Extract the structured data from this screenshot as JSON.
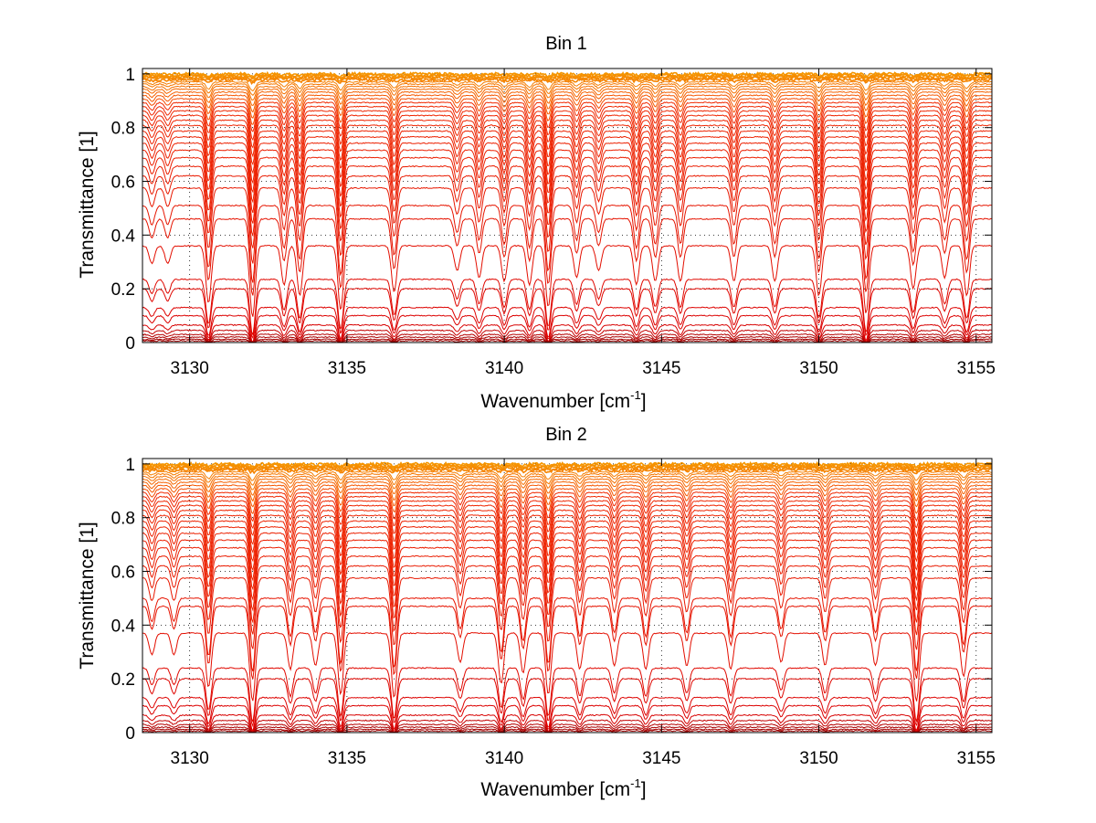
{
  "chart_data": [
    {
      "type": "line",
      "title": "Bin 1",
      "xlabel": "Wavenumber [cm",
      "xlabel_sup": "-1",
      "xlabel_end": "]",
      "ylabel": "Transmittance [1]",
      "xlim": [
        3128.5,
        3155.5
      ],
      "ylim": [
        0,
        1.02
      ],
      "xticks": [
        3130,
        3135,
        3140,
        3145,
        3150,
        3155
      ],
      "yticks": [
        0,
        0.2,
        0.4,
        0.6,
        0.8,
        1
      ],
      "ytick_labels": [
        "0",
        "0.2",
        "0.4",
        "0.6",
        "0.8",
        "1"
      ],
      "grid": true,
      "legend": "none",
      "colormap": "autumn (dark red at low transmittance to orange near 1)",
      "series_baselines": [
        1.0,
        0.995,
        0.99,
        0.985,
        0.978,
        0.97,
        0.962,
        0.953,
        0.943,
        0.932,
        0.92,
        0.907,
        0.893,
        0.878,
        0.862,
        0.845,
        0.827,
        0.808,
        0.787,
        0.765,
        0.742,
        0.716,
        0.688,
        0.656,
        0.62,
        0.575,
        0.51,
        0.46,
        0.36,
        0.235,
        0.2,
        0.13,
        0.1,
        0.065,
        0.045,
        0.03,
        0.02,
        0.012,
        0.006
      ],
      "line_positions_cm-1": [
        3128.8,
        3129.3,
        3130.6,
        3132.0,
        3133.0,
        3133.5,
        3134.8,
        3136.5,
        3138.5,
        3139.2,
        3140.0,
        3140.8,
        3141.4,
        3142.3,
        3143.0,
        3144.2,
        3144.8,
        3145.6,
        3147.3,
        3148.6,
        3150.0,
        3151.5,
        3153.0,
        3154.0,
        3154.7
      ],
      "line_strengths": [
        0.25,
        0.25,
        0.8,
        1.0,
        0.55,
        0.7,
        0.9,
        0.65,
        0.35,
        0.45,
        0.5,
        0.55,
        0.85,
        0.45,
        0.35,
        0.55,
        0.5,
        0.5,
        0.5,
        0.5,
        0.7,
        0.95,
        0.6,
        0.45,
        0.7
      ]
    },
    {
      "type": "line",
      "title": "Bin 2",
      "xlabel": "Wavenumber [cm",
      "xlabel_sup": "-1",
      "xlabel_end": "]",
      "ylabel": "Transmittance [1]",
      "xlim": [
        3128.5,
        3155.5
      ],
      "ylim": [
        0,
        1.02
      ],
      "xticks": [
        3130,
        3135,
        3140,
        3145,
        3150,
        3155
      ],
      "yticks": [
        0,
        0.2,
        0.4,
        0.6,
        0.8,
        1
      ],
      "ytick_labels": [
        "0",
        "0.2",
        "0.4",
        "0.6",
        "0.8",
        "1"
      ],
      "grid": true,
      "legend": "none",
      "colormap": "autumn (dark red at low transmittance to orange near 1)",
      "series_baselines": [
        1.0,
        0.995,
        0.99,
        0.985,
        0.978,
        0.97,
        0.962,
        0.953,
        0.943,
        0.932,
        0.92,
        0.907,
        0.893,
        0.878,
        0.862,
        0.845,
        0.827,
        0.808,
        0.787,
        0.765,
        0.742,
        0.716,
        0.688,
        0.656,
        0.62,
        0.575,
        0.5,
        0.47,
        0.37,
        0.24,
        0.2,
        0.13,
        0.1,
        0.065,
        0.045,
        0.03,
        0.02,
        0.012,
        0.006
      ],
      "line_positions_cm-1": [
        3128.8,
        3129.5,
        3130.6,
        3132.0,
        3133.2,
        3134.0,
        3134.8,
        3136.5,
        3138.6,
        3139.9,
        3140.6,
        3141.4,
        3142.4,
        3143.5,
        3144.5,
        3145.8,
        3147.2,
        3148.8,
        3150.2,
        3151.8,
        3153.1,
        3154.6
      ],
      "line_strengths": [
        0.3,
        0.3,
        0.75,
        0.95,
        0.5,
        0.45,
        0.85,
        0.9,
        0.4,
        0.7,
        0.55,
        0.85,
        0.5,
        0.45,
        0.5,
        0.45,
        0.5,
        0.4,
        0.45,
        0.45,
        0.95,
        0.6
      ]
    }
  ]
}
